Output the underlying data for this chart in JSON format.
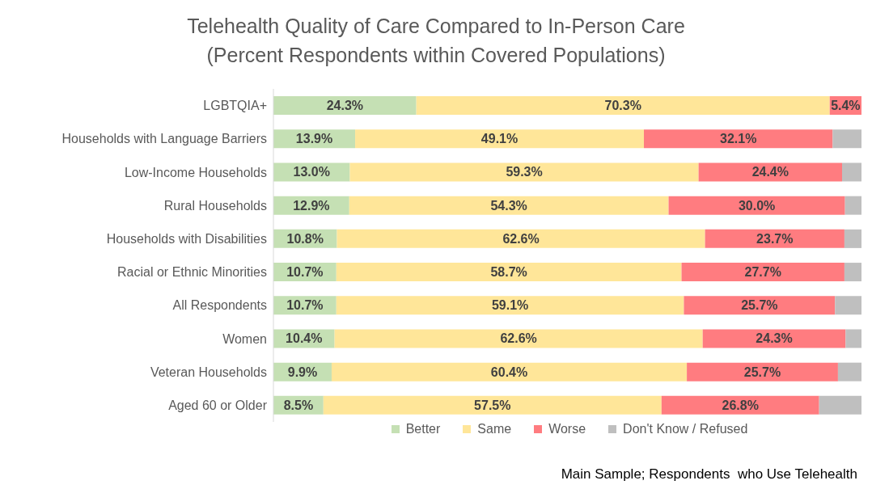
{
  "chart_data": {
    "type": "bar",
    "orientation": "horizontal",
    "stacked": true,
    "title": "Telehealth Quality of Care Compared to In-Person Care\n(Percent Respondents within Covered Populations)",
    "categories": [
      "LGBTQIA+",
      "Households with Language Barriers",
      "Low-Income Households",
      "Rural Households",
      "Households with Disabilities",
      "Racial or Ethnic Minorities",
      "All Respondents",
      "Women",
      "Veteran Households",
      "Aged 60 or Older"
    ],
    "series": [
      {
        "name": "Better",
        "color": "#c5e0b4",
        "values": [
          24.3,
          13.9,
          13.0,
          12.9,
          10.8,
          10.7,
          10.7,
          10.4,
          9.9,
          8.5
        ],
        "value_labels": [
          "24.3%",
          "13.9%",
          "13.0%",
          "12.9%",
          "10.8%",
          "10.7%",
          "10.7%",
          "10.4%",
          "9.9%",
          "8.5%"
        ]
      },
      {
        "name": "Same",
        "color": "#ffe699",
        "values": [
          70.3,
          49.1,
          59.3,
          54.3,
          62.6,
          58.7,
          59.1,
          62.6,
          60.4,
          57.5
        ],
        "value_labels": [
          "70.3%",
          "49.1%",
          "59.3%",
          "54.3%",
          "62.6%",
          "58.7%",
          "59.1%",
          "62.6%",
          "60.4%",
          "57.5%"
        ]
      },
      {
        "name": "Worse",
        "color": "#ff7c80",
        "values": [
          5.4,
          32.1,
          24.4,
          30.0,
          23.7,
          27.7,
          25.7,
          24.3,
          25.7,
          26.8
        ],
        "value_labels": [
          "5.4%",
          "32.1%",
          "24.4%",
          "30.0%",
          "23.7%",
          "27.7%",
          "25.7%",
          "24.3%",
          "25.7%",
          "26.8%"
        ]
      },
      {
        "name": "Don't Know / Refused",
        "color": "#bfbfbf",
        "values": [
          0,
          4.9,
          3.3,
          2.8,
          2.9,
          2.9,
          4.5,
          2.7,
          4.0,
          7.2
        ]
      }
    ],
    "xlim": [
      0,
      100
    ],
    "tick_labels": "y",
    "legend": "bottom",
    "annotations": [
      "Main Sample; Respondents  who Use Telehealth"
    ]
  }
}
